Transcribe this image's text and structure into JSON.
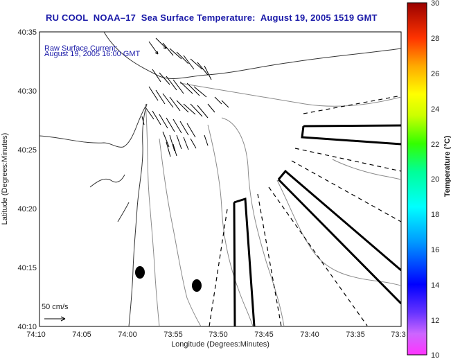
{
  "title": {
    "part1": "RU COOL  NOAA–17  Sea Surface Temperature:  August 19, 2005 1519 GMT"
  },
  "annotation": {
    "line1": "Raw Surface Current:",
    "line2": "August 19, 2005 16:00 GMT"
  },
  "scale": {
    "label": "50 cm/s"
  },
  "axes": {
    "xlabel": "Longitude (Degrees:Minutes)",
    "ylabel": "Latitude (Degrees:Minutes)",
    "xticks": [
      "74:10",
      "74:05",
      "74:00",
      "73:55",
      "73:50",
      "73:45",
      "73:40",
      "73:35",
      "73:3"
    ],
    "yticks": [
      "40:35",
      "40:30",
      "40:25",
      "40:20",
      "40:15",
      "40:10"
    ]
  },
  "colorbar": {
    "label": "Temperature (°C)",
    "ticks": [
      "30",
      "28",
      "26",
      "24",
      "22",
      "20",
      "18",
      "16",
      "14",
      "12",
      "10"
    ],
    "min": 10,
    "max": 30
  }
}
